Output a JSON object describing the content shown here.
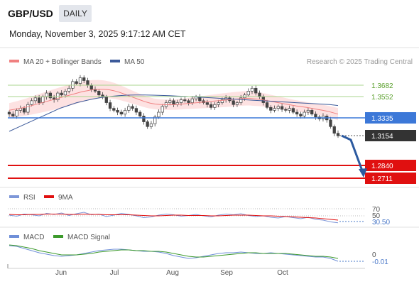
{
  "header": {
    "symbol": "GBP/USD",
    "timeframe": "DAILY",
    "datetime": "Monday, November 3, 2025 9:17:12 AM CET"
  },
  "legend": {
    "ma20_label": "MA 20 + Bollinger Bands",
    "ma50_label": "MA 50",
    "credit": "Research © 2025 Trading Central"
  },
  "colors": {
    "ma20": "#f08080",
    "ma50": "#3c5a9a",
    "bands": "#fde2e2",
    "pivot": "#3c78d8",
    "support": "#e01010",
    "resistance": "#5aa02c",
    "price_tag": "#333333",
    "rsi": "#7e97d8",
    "rsi_ma": "#e01010",
    "macd": "#6f8fd8",
    "macd_signal": "#3c9a2c"
  },
  "levels": {
    "resistance": [
      {
        "value": "1.3682"
      },
      {
        "value": "1.3552"
      }
    ],
    "pivot": {
      "value": "1.3335"
    },
    "last_price": {
      "value": "1.3154"
    },
    "support": [
      {
        "value": "1.2840"
      },
      {
        "value": "1.2711"
      }
    ]
  },
  "rsi_panel": {
    "rsi_label": "RSI",
    "ma_label": "9MA",
    "level_high": "70",
    "level_mid": "50",
    "current": "30.50"
  },
  "macd_panel": {
    "macd_label": "MACD",
    "signal_label": "MACD Signal",
    "zero": "0",
    "current": "-0.01"
  },
  "months": [
    "Jun",
    "Jul",
    "Aug",
    "Sep",
    "Oct"
  ],
  "chart_data": {
    "type": "candlestick",
    "x_axis": [
      "Jun",
      "Jul",
      "Aug",
      "Sep",
      "Oct"
    ],
    "price_range_shown": [
      1.2711,
      1.3682
    ],
    "close_series": [
      1.338,
      1.336,
      1.342,
      1.344,
      1.34,
      1.348,
      1.352,
      1.355,
      1.35,
      1.356,
      1.36,
      1.355,
      1.353,
      1.36,
      1.358,
      1.362,
      1.365,
      1.372,
      1.37,
      1.376,
      1.373,
      1.368,
      1.364,
      1.362,
      1.358,
      1.356,
      1.35,
      1.344,
      1.342,
      1.34,
      1.338,
      1.342,
      1.346,
      1.344,
      1.34,
      1.336,
      1.33,
      1.325,
      1.328,
      1.335,
      1.34,
      1.346,
      1.35,
      1.352,
      1.348,
      1.35,
      1.353,
      1.352,
      1.35,
      1.354,
      1.356,
      1.352,
      1.35,
      1.348,
      1.345,
      1.348,
      1.35,
      1.353,
      1.355,
      1.352,
      1.348,
      1.35,
      1.355,
      1.358,
      1.362,
      1.365,
      1.36,
      1.356,
      1.35,
      1.345,
      1.342,
      1.344,
      1.346,
      1.343,
      1.342,
      1.344,
      1.34,
      1.338,
      1.336,
      1.34,
      1.342,
      1.338,
      1.335,
      1.333,
      1.336,
      1.332,
      1.325,
      1.318,
      1.3154
    ],
    "ma20_series": [
      1.342,
      1.343,
      1.344,
      1.345,
      1.3465,
      1.348,
      1.3495,
      1.351,
      1.3525,
      1.354,
      1.3555,
      1.357,
      1.3585,
      1.36,
      1.3615,
      1.3625,
      1.3635,
      1.364,
      1.364,
      1.3635,
      1.3625,
      1.361,
      1.359,
      1.357,
      1.355,
      1.353,
      1.351,
      1.3495,
      1.3485,
      1.348,
      1.3478,
      1.3478,
      1.348,
      1.3485,
      1.349,
      1.3495,
      1.35,
      1.3505,
      1.351,
      1.3515,
      1.352,
      1.3525,
      1.353,
      1.3535,
      1.354,
      1.3545,
      1.3545,
      1.354,
      1.3535,
      1.3525,
      1.3515,
      1.3505,
      1.3495,
      1.3485,
      1.3475,
      1.3465,
      1.3458,
      1.345,
      1.344,
      1.343,
      1.342,
      1.341,
      1.3395,
      1.338
    ],
    "ma50_series": [
      1.32,
      1.324,
      1.328,
      1.332,
      1.336,
      1.34,
      1.344,
      1.347,
      1.35,
      1.352,
      1.354,
      1.3555,
      1.3565,
      1.3572,
      1.3578,
      1.358,
      1.358,
      1.3578,
      1.3575,
      1.3572,
      1.3568,
      1.3565,
      1.356,
      1.3555,
      1.355,
      1.3545,
      1.354,
      1.3535,
      1.353,
      1.3525,
      1.352,
      1.3515,
      1.351,
      1.3505,
      1.35,
      1.3495,
      1.349,
      1.3485,
      1.348,
      1.347
    ],
    "rsi_series": [
      52,
      49,
      55,
      53,
      50,
      57,
      54,
      58,
      51,
      56,
      60,
      53,
      55,
      48,
      52,
      57,
      54,
      50,
      45,
      47,
      52,
      55,
      53,
      49,
      51,
      54,
      50,
      47,
      52,
      55,
      53,
      56,
      51,
      48,
      50,
      46,
      44,
      48,
      45,
      42,
      46,
      40,
      38,
      33,
      30.5
    ],
    "rsi_ma_series": [
      54,
      53,
      53,
      54,
      54,
      55,
      55,
      55,
      54,
      54,
      55,
      54,
      54,
      53,
      53,
      53,
      53,
      52,
      51,
      50,
      50,
      51,
      52,
      52,
      51,
      51,
      51,
      50,
      50,
      51,
      52,
      52,
      52,
      51,
      50,
      50,
      49,
      48,
      47,
      46,
      45,
      44,
      42,
      40,
      38
    ],
    "macd_series": [
      0.012,
      0.011,
      0.008,
      0.005,
      0.002,
      0.0,
      -0.002,
      -0.003,
      -0.002,
      -0.001,
      0.001,
      0.003,
      0.005,
      0.006,
      0.007,
      0.007,
      0.006,
      0.005,
      0.004,
      0.004,
      0.003,
      0.001,
      -0.002,
      -0.004,
      -0.006,
      -0.005,
      -0.003,
      -0.001,
      0.001,
      0.002,
      0.002,
      0.003,
      0.002,
      0.001,
      0.001,
      0.002,
      0.001,
      0.0,
      -0.001,
      -0.002,
      -0.003,
      -0.004,
      -0.004,
      -0.006,
      -0.01
    ],
    "macd_signal_series": [
      0.013,
      0.012,
      0.01,
      0.008,
      0.005,
      0.003,
      0.001,
      -0.001,
      -0.001,
      -0.001,
      0.0,
      0.001,
      0.003,
      0.004,
      0.005,
      0.006,
      0.006,
      0.005,
      0.005,
      0.004,
      0.004,
      0.003,
      0.001,
      -0.001,
      -0.003,
      -0.004,
      -0.004,
      -0.003,
      -0.002,
      -0.001,
      0.0,
      0.001,
      0.002,
      0.002,
      0.001,
      0.001,
      0.001,
      0.001,
      0.0,
      -0.001,
      -0.002,
      -0.003,
      -0.003,
      -0.004,
      -0.006
    ],
    "rsi_range": [
      0,
      100
    ],
    "macd_range": [
      -0.02,
      0.02
    ]
  }
}
